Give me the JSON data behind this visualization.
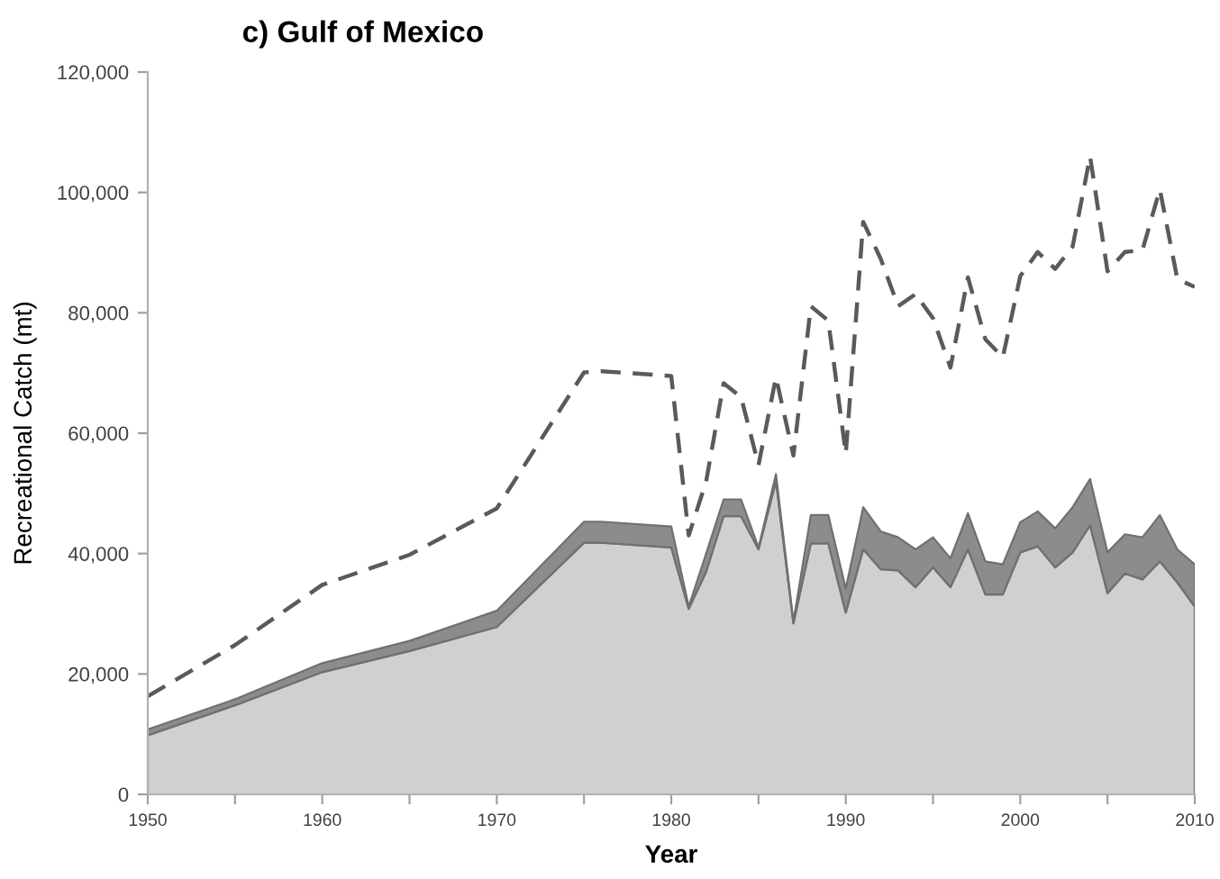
{
  "chart_data": {
    "type": "area",
    "title": "c) Gulf of Mexico",
    "xlabel": "Year",
    "ylabel": "Recreational Catch (mt)",
    "stacked": true,
    "grid": false,
    "legend": false,
    "xlim": [
      1950,
      2010
    ],
    "xticks": [
      1950,
      {
        "value": 1955,
        "label": null
      },
      1960,
      {
        "value": 1965,
        "label": null
      },
      1970,
      {
        "value": 1975,
        "label": null
      },
      1980,
      {
        "value": 1985,
        "label": null
      },
      1990,
      {
        "value": 1995,
        "label": null
      },
      2000,
      {
        "value": 2005,
        "label": null
      },
      2010
    ],
    "ylim": [
      0,
      120000
    ],
    "yticks": [
      0,
      {
        "value": 20000,
        "label": "20,000"
      },
      {
        "value": 40000,
        "label": "40,000"
      },
      {
        "value": 60000,
        "label": "60,000"
      },
      {
        "value": 80000,
        "label": "80,000"
      },
      {
        "value": 100000,
        "label": "100,000"
      },
      {
        "value": 120000,
        "label": "120,000"
      }
    ],
    "series": [
      {
        "color": "#d0d0d0",
        "x": [
          1950,
          1955,
          1960,
          1965,
          1970,
          1975,
          1976,
          1980,
          1981,
          1982,
          1983,
          1984,
          1985,
          1986,
          1987,
          1988,
          1989,
          1990,
          1991,
          1992,
          1993,
          1994,
          1995,
          1996,
          1997,
          1998,
          1999,
          2000,
          2001,
          2002,
          2003,
          2004,
          2005,
          2006,
          2007,
          2008,
          2009,
          2010
        ],
        "values": [
          9800,
          14800,
          20300,
          23800,
          27800,
          41800,
          41800,
          41000,
          30800,
          37000,
          46200,
          46200,
          40700,
          52000,
          28400,
          41700,
          41700,
          30200,
          40700,
          37400,
          37200,
          34400,
          37700,
          34400,
          40700,
          33200,
          33200,
          40200,
          41200,
          37700,
          40200,
          44700,
          33400,
          36700,
          35700,
          38700,
          35200,
          31200
        ]
      },
      {
        "color": "#8c8c8c",
        "x": [
          1950,
          1955,
          1960,
          1965,
          1970,
          1975,
          1976,
          1980,
          1981,
          1982,
          1983,
          1984,
          1985,
          1986,
          1987,
          1988,
          1989,
          1990,
          1991,
          1992,
          1993,
          1994,
          1995,
          1996,
          1997,
          1998,
          1999,
          2000,
          2001,
          2002,
          2003,
          2004,
          2005,
          2006,
          2007,
          2008,
          2009,
          2010
        ],
        "values": [
          1000,
          1000,
          1500,
          1700,
          2700,
          3500,
          3500,
          3500,
          400,
          3000,
          2800,
          2800,
          300,
          1200,
          300,
          4700,
          4700,
          4000,
          7000,
          6300,
          5500,
          6300,
          5000,
          4800,
          6000,
          5500,
          5000,
          5000,
          5800,
          6500,
          7500,
          7700,
          6800,
          6500,
          7000,
          7700,
          5500,
          7000
        ]
      },
      {
        "type": "line",
        "color": "#5a5a5a",
        "line_style": "dashed",
        "x": [
          1950,
          1955,
          1960,
          1965,
          1970,
          1975,
          1976,
          1980,
          1981,
          1982,
          1983,
          1984,
          1985,
          1986,
          1987,
          1988,
          1989,
          1990,
          1991,
          1992,
          1993,
          1994,
          1995,
          1996,
          1997,
          1998,
          1999,
          2000,
          2001,
          2002,
          2003,
          2004,
          2005,
          2006,
          2007,
          2008,
          2009,
          2010
        ],
        "values": [
          16300,
          24800,
          34800,
          39800,
          47500,
          70100,
          70300,
          69500,
          43000,
          52000,
          68300,
          66000,
          54700,
          69300,
          56300,
          81100,
          78700,
          56600,
          95100,
          89000,
          81100,
          83100,
          79100,
          70900,
          85900,
          75600,
          72600,
          86100,
          90100,
          87300,
          91000,
          106000,
          86900,
          90100,
          90400,
          100500,
          85600,
          84300
        ]
      }
    ]
  }
}
